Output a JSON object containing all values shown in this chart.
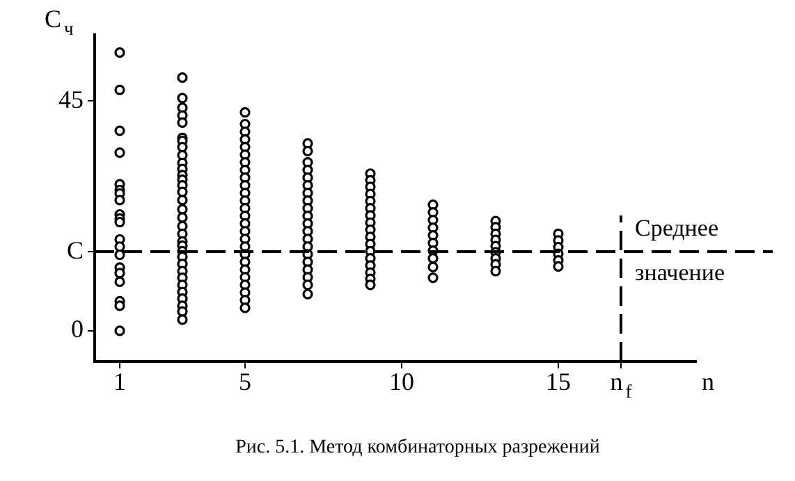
{
  "chart_data": {
    "type": "scatter",
    "ylabel": "C$_{ч}$",
    "xlabel": "n",
    "annotations": [
      "Рис. 5.1. Метод комбинаторных разрежений"
    ],
    "xlim": [
      0.2,
      19.4
    ],
    "xticks": [
      1,
      5,
      10,
      15,
      {
        "value": 17,
        "label": "n$_{f}$"
      }
    ],
    "ylim": [
      -6,
      58
    ],
    "yticks": [
      0,
      {
        "value": 15.5,
        "label": "C"
      },
      45
    ],
    "grid": false,
    "legend": false,
    "marker": "circle",
    "ref_lines": [
      {
        "axis": "y",
        "value": 15.5,
        "label": "Среднее значение",
        "line_style": "dashed",
        "color": "#000000"
      },
      {
        "axis": "x",
        "value": 17,
        "line_style": "dashed",
        "color": "#000000"
      }
    ],
    "series": [
      {
        "color": "#000000",
        "x": [
          1,
          1,
          1,
          1,
          1,
          1,
          1,
          1,
          1,
          1,
          1,
          1,
          1,
          1,
          1,
          1,
          1,
          1,
          1,
          1,
          3,
          3,
          3,
          3,
          3,
          3,
          3,
          3,
          3,
          3,
          3,
          3,
          3,
          3,
          3,
          3,
          3,
          3,
          3,
          3,
          3,
          3,
          3,
          3,
          3,
          3,
          3,
          3,
          3,
          3,
          3,
          3,
          3,
          5,
          5,
          5,
          5,
          5,
          5,
          5,
          5,
          5,
          5,
          5,
          5,
          5,
          5,
          5,
          5,
          5,
          5,
          5,
          5,
          5,
          5,
          5,
          5,
          5,
          5,
          7,
          7,
          7,
          7,
          7,
          7,
          7,
          7,
          7,
          7,
          7,
          7,
          7,
          7,
          7,
          7,
          7,
          7,
          7,
          7,
          9,
          9,
          9,
          9,
          9,
          9,
          9,
          9,
          9,
          9,
          9,
          9,
          9,
          9,
          9,
          9,
          9,
          11,
          11,
          11,
          11,
          11,
          11,
          11,
          11,
          11,
          11,
          13,
          13,
          13,
          13,
          13,
          13,
          13,
          13,
          13,
          15,
          15,
          15,
          15,
          15,
          15
        ],
        "values": [
          54.5,
          47.2,
          39.2,
          34.9,
          28.7,
          27.6,
          26.9,
          25.6,
          22.8,
          22.0,
          21.3,
          17.9,
          16.5,
          14.9,
          12.4,
          11.3,
          9.6,
          5.8,
          4.9,
          0,
          49.6,
          45.6,
          43.7,
          42.2,
          40.8,
          37.8,
          37.2,
          36.0,
          34.4,
          32.9,
          31.7,
          30.5,
          29.6,
          28.5,
          27.2,
          25.6,
          23.8,
          22.2,
          20.5,
          19.0,
          17.5,
          16.7,
          15.6,
          14.5,
          13.1,
          11.7,
          10.4,
          9.0,
          7.6,
          6.3,
          4.9,
          3.8,
          2.2,
          42.8,
          40.5,
          39.0,
          37.5,
          36.0,
          34.5,
          33.0,
          31.5,
          30.0,
          28.5,
          27.0,
          25.5,
          24.0,
          22.5,
          21.0,
          19.5,
          18.0,
          16.5,
          15.0,
          13.5,
          12.0,
          10.5,
          9.0,
          7.5,
          6.0,
          4.5,
          36.7,
          35.2,
          33.0,
          31.5,
          30.0,
          28.5,
          27.0,
          25.5,
          24.0,
          22.5,
          21.0,
          19.5,
          18.0,
          16.5,
          15.0,
          13.5,
          12.0,
          10.5,
          9.0,
          7.2,
          30.8,
          29.5,
          28.2,
          26.8,
          25.4,
          24.0,
          22.6,
          21.2,
          19.8,
          18.4,
          17.0,
          15.6,
          14.2,
          12.8,
          11.4,
          10.2,
          9.0,
          24.7,
          23.2,
          21.7,
          20.2,
          18.7,
          17.2,
          15.7,
          14.2,
          12.5,
          10.4,
          21.5,
          20.3,
          19.0,
          17.8,
          16.6,
          15.4,
          14.2,
          13.0,
          11.7,
          19.0,
          17.7,
          16.4,
          15.1,
          13.8,
          12.6
        ]
      }
    ]
  }
}
